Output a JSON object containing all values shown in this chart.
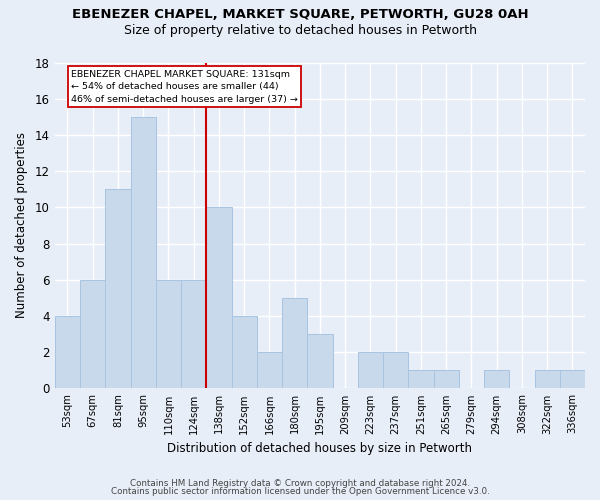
{
  "title": "EBENEZER CHAPEL, MARKET SQUARE, PETWORTH, GU28 0AH",
  "subtitle": "Size of property relative to detached houses in Petworth",
  "xlabel": "Distribution of detached houses by size in Petworth",
  "ylabel": "Number of detached properties",
  "categories": [
    "53sqm",
    "67sqm",
    "81sqm",
    "95sqm",
    "110sqm",
    "124sqm",
    "138sqm",
    "152sqm",
    "166sqm",
    "180sqm",
    "195sqm",
    "209sqm",
    "223sqm",
    "237sqm",
    "251sqm",
    "265sqm",
    "279sqm",
    "294sqm",
    "308sqm",
    "322sqm",
    "336sqm"
  ],
  "values": [
    4,
    6,
    11,
    15,
    6,
    6,
    10,
    4,
    2,
    5,
    3,
    0,
    2,
    2,
    1,
    1,
    0,
    1,
    0,
    1,
    1
  ],
  "bar_color": "#c8d9ec",
  "bar_edge_color": "#a8c4e0",
  "ylim": [
    0,
    18
  ],
  "yticks": [
    0,
    2,
    4,
    6,
    8,
    10,
    12,
    14,
    16,
    18
  ],
  "red_line_x": 5.5,
  "annotation_text_line1": "EBENEZER CHAPEL MARKET SQUARE: 131sqm",
  "annotation_text_line2": "← 54% of detached houses are smaller (44)",
  "annotation_text_line3": "46% of semi-detached houses are larger (37) →",
  "red_line_color": "#cc0000",
  "annotation_box_color": "#ffffff",
  "annotation_box_edge": "#cc0000",
  "footer_line1": "Contains HM Land Registry data © Crown copyright and database right 2024.",
  "footer_line2": "Contains public sector information licensed under the Open Government Licence v3.0.",
  "background_color": "#e8eef8",
  "grid_color": "#ffffff"
}
